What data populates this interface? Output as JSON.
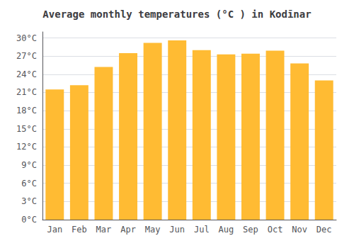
{
  "chart_data": {
    "type": "bar",
    "title": "Average monthly temperatures (°C ) in Kodīnar",
    "categories": [
      "Jan",
      "Feb",
      "Mar",
      "Apr",
      "May",
      "Jun",
      "Jul",
      "Aug",
      "Sep",
      "Oct",
      "Nov",
      "Dec"
    ],
    "values": [
      21.5,
      22.2,
      25.2,
      27.5,
      29.2,
      29.6,
      28.0,
      27.3,
      27.4,
      27.9,
      25.8,
      23.0
    ],
    "color": "#FFBB33",
    "ylim": [
      0,
      31
    ],
    "yticks": [
      {
        "value": 0,
        "label": "0°C"
      },
      {
        "value": 3,
        "label": "3°C"
      },
      {
        "value": 6,
        "label": "6°C"
      },
      {
        "value": 9,
        "label": "9°C"
      },
      {
        "value": 12,
        "label": "12°C"
      },
      {
        "value": 15,
        "label": "15°C"
      },
      {
        "value": 18,
        "label": "18°C"
      },
      {
        "value": 21,
        "label": "21°C"
      },
      {
        "value": 24,
        "label": "24°C"
      },
      {
        "value": 27,
        "label": "27°C"
      },
      {
        "value": 30,
        "label": "30°C"
      }
    ],
    "grid": true
  }
}
